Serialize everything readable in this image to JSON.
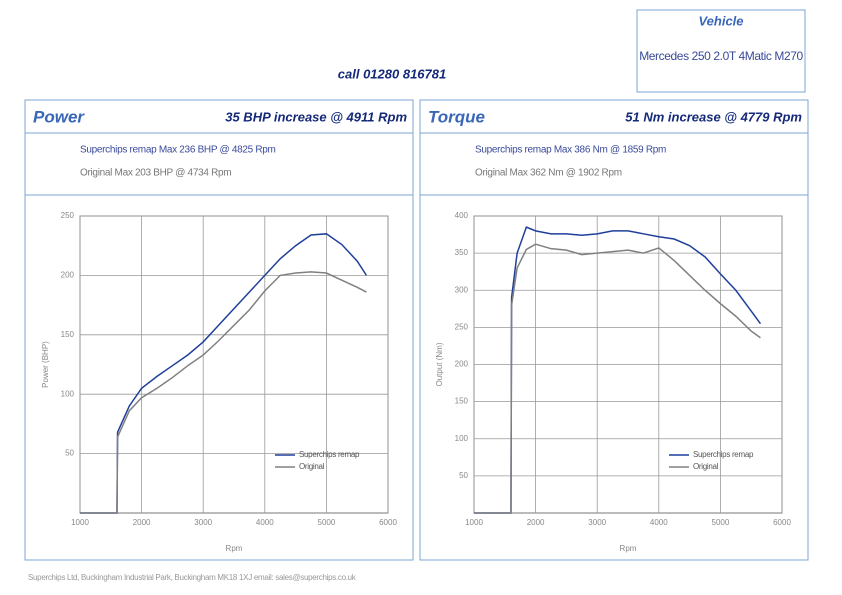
{
  "header": {
    "phone": "call 01280 816781"
  },
  "vehicle": {
    "title": "Vehicle",
    "name": "Mercedes 250 2.0T 4Matic M270"
  },
  "footer": "Superchips Ltd, Buckingham Industrial Park, Buckingham MK18 1XJ email: sales@superchips.co.uk",
  "chart_data": [
    {
      "type": "line",
      "title": "Power",
      "subtitle": "35 BHP increase @ 4911 Rpm",
      "annotations": [
        "Superchips remap Max 236 BHP @ 4825 Rpm",
        "Original Max 203 BHP @ 4734 Rpm"
      ],
      "xlabel": "Rpm",
      "ylabel": "Power (BHP)",
      "x": [
        1000,
        1600,
        1610,
        1800,
        2000,
        2250,
        2500,
        2750,
        3000,
        3250,
        3500,
        3750,
        4000,
        4250,
        4500,
        4750,
        5000,
        5250,
        5500,
        5650
      ],
      "xlim": [
        1000,
        6000
      ],
      "xticks": [
        1000,
        2000,
        3000,
        4000,
        5000,
        6000
      ],
      "ylim": [
        0,
        250
      ],
      "yticks": [
        50,
        100,
        150,
        200,
        250
      ],
      "grid": true,
      "legend": "lower right",
      "series": [
        {
          "name": "Superchips remap",
          "color": "#1f3f9a",
          "values": [
            0,
            0,
            68,
            90,
            105,
            115,
            124,
            133,
            144,
            158,
            172,
            186,
            200,
            214,
            225,
            234,
            235,
            226,
            212,
            200
          ]
        },
        {
          "name": "Original",
          "color": "#808080",
          "values": [
            0,
            0,
            64,
            86,
            97,
            105,
            114,
            124,
            133,
            145,
            158,
            171,
            187,
            200,
            202,
            203,
            202,
            196,
            190,
            186
          ]
        }
      ]
    },
    {
      "type": "line",
      "title": "Torque",
      "subtitle": "51 Nm increase @ 4779 Rpm",
      "annotations": [
        "Superchips remap Max 386 Nm @ 1859 Rpm",
        "Original Max 362 Nm @ 1902 Rpm"
      ],
      "xlabel": "Rpm",
      "ylabel": "Output (Nm)",
      "x": [
        1000,
        1600,
        1610,
        1700,
        1850,
        2000,
        2250,
        2500,
        2750,
        3000,
        3250,
        3500,
        3750,
        4000,
        4250,
        4500,
        4750,
        5000,
        5250,
        5500,
        5650
      ],
      "xlim": [
        1000,
        6000
      ],
      "xticks": [
        1000,
        2000,
        3000,
        4000,
        5000,
        6000
      ],
      "ylim": [
        0,
        400
      ],
      "yticks": [
        50,
        100,
        150,
        200,
        250,
        300,
        350,
        400
      ],
      "grid": true,
      "legend": "lower right",
      "series": [
        {
          "name": "Superchips remap",
          "color": "#1f3f9a",
          "values": [
            0,
            0,
            290,
            350,
            385,
            380,
            376,
            376,
            374,
            376,
            380,
            380,
            376,
            372,
            369,
            360,
            345,
            322,
            300,
            272,
            255
          ]
        },
        {
          "name": "Original",
          "color": "#808080",
          "values": [
            0,
            0,
            280,
            330,
            355,
            362,
            356,
            354,
            348,
            350,
            352,
            354,
            350,
            357,
            340,
            320,
            300,
            282,
            265,
            245,
            236
          ]
        }
      ]
    }
  ]
}
